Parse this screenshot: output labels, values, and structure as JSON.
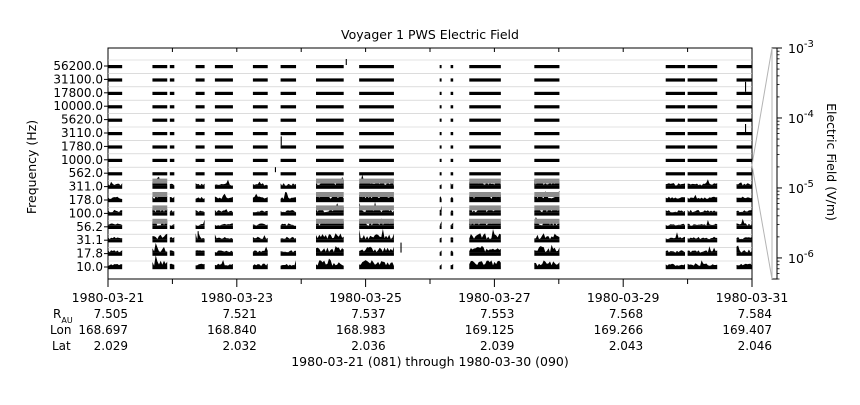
{
  "chart_data": {
    "type": "heatmap",
    "title": "Voyager 1 PWS Electric Field",
    "ylabel": "Frequency (Hz)",
    "colorbar_label": "Electric Field (V/m)",
    "frequency_channels_hz": [
      "10.0",
      "17.8",
      "31.1",
      "56.2",
      "100.0",
      "178.0",
      "311.0",
      "562.0",
      "1000.0",
      "1780.0",
      "3110.0",
      "5620.0",
      "10000.0",
      "17800.0",
      "31100.0",
      "56200.0"
    ],
    "colorbar": {
      "scale": "log",
      "range": [
        5e-07,
        0.001
      ],
      "ticks": [
        {
          "value": 0.001,
          "base": "10",
          "exp": "-3"
        },
        {
          "value": 0.0001,
          "base": "10",
          "exp": "-4"
        },
        {
          "value": 1e-05,
          "base": "10",
          "exp": "-5"
        },
        {
          "value": 1e-06,
          "base": "10",
          "exp": "-6"
        }
      ]
    },
    "x_range": [
      "1980-03-21",
      "1980-03-31"
    ],
    "x_tick_labels": [
      "1980-03-21",
      "1980-03-23",
      "1980-03-25",
      "1980-03-27",
      "1980-03-29",
      "1980-03-31"
    ],
    "ephemeris": {
      "row_labels": {
        "r_main": "R",
        "r_sub": "AU",
        "lon": "Lon",
        "lat": "Lat"
      },
      "R_AU": [
        "7.505",
        "7.521",
        "7.537",
        "7.553",
        "7.568",
        "7.584"
      ],
      "Lon": [
        "168.697",
        "168.840",
        "168.983",
        "169.125",
        "169.266",
        "169.407"
      ],
      "Lat": [
        "2.029",
        "2.032",
        "2.036",
        "2.039",
        "2.043",
        "2.046"
      ]
    },
    "coverage_intervals_days": [
      [
        0.0,
        0.22
      ],
      [
        0.69,
        0.92
      ],
      [
        0.96,
        1.03
      ],
      [
        1.36,
        1.5
      ],
      [
        1.66,
        1.94
      ],
      [
        2.25,
        2.48
      ],
      [
        2.68,
        2.92
      ],
      [
        3.23,
        3.66
      ],
      [
        3.9,
        4.44
      ],
      [
        5.15,
        5.18
      ],
      [
        5.32,
        5.36
      ],
      [
        5.61,
        6.1
      ],
      [
        6.62,
        7.01
      ],
      [
        8.66,
        8.96
      ],
      [
        9.0,
        9.46
      ],
      [
        9.76,
        10.0
      ]
    ],
    "enhanced_intervals_days": [
      [
        0.69,
        0.92
      ],
      [
        3.23,
        3.44
      ],
      [
        3.9,
        4.44
      ],
      [
        5.61,
        6.1
      ],
      [
        6.62,
        6.8
      ],
      [
        6.8,
        7.01
      ]
    ],
    "xlabel": "1980-03-21 (081) through 1980-03-30 (090)"
  }
}
